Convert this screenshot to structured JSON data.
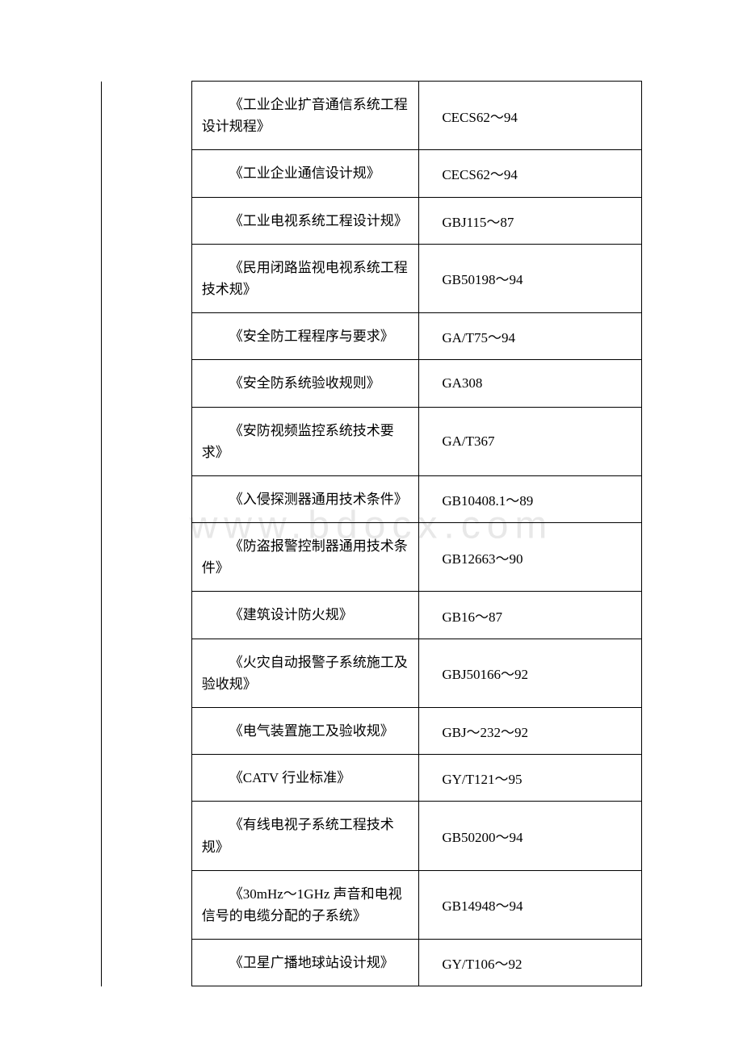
{
  "watermark": "www.bdocx.com",
  "table": {
    "columns": {
      "left_width": 112,
      "mid_width": 282,
      "right_width": 276
    },
    "colors": {
      "background": "#ffffff",
      "border": "#000000",
      "text": "#000000",
      "watermark": "#e8e8e8"
    },
    "typography": {
      "font_family_cn": "SimSun",
      "font_family_en": "Times New Roman",
      "font_size": 17,
      "line_height": 1.6,
      "watermark_font_size": 48
    },
    "rows": [
      {
        "name": "《工业企业扩音通信系统工程设计规程》",
        "code": "CECS62～94"
      },
      {
        "name": "《工业企业通信设计规》",
        "code": "CECS62～94"
      },
      {
        "name": "《工业电视系统工程设计规》",
        "code": "GBJ115～87"
      },
      {
        "name": "《民用闭路监视电视系统工程技术规》",
        "code": "GB50198～94"
      },
      {
        "name": "《安全防工程程序与要求》",
        "code": "GA/T75～94"
      },
      {
        "name": "《安全防系统验收规则》",
        "code": "GA308"
      },
      {
        "name": "《安防视频监控系统技术要求》",
        "code": "GA/T367"
      },
      {
        "name": "《入侵探测器通用技术条件》",
        "code": "GB10408.1～89"
      },
      {
        "name": "《防盗报警控制器通用技术条件》",
        "code": "GB12663～90"
      },
      {
        "name": "《建筑设计防火规》",
        "code": "GB16～87"
      },
      {
        "name": "《火灾自动报警子系统施工及验收规》",
        "code": "GBJ50166～92"
      },
      {
        "name": "《电气装置施工及验收规》",
        "code": "GBJ～232～92"
      },
      {
        "name": "《CATV 行业标准》",
        "code": "GY/T121～95"
      },
      {
        "name": "《有线电视子系统工程技术规》",
        "code": "GB50200～94"
      },
      {
        "name": "《30mHz～1GHz 声音和电视信号的电缆分配的子系统》",
        "code": "GB14948～94"
      },
      {
        "name": "《卫星广播地球站设计规》",
        "code": "GY/T106～92"
      }
    ]
  }
}
